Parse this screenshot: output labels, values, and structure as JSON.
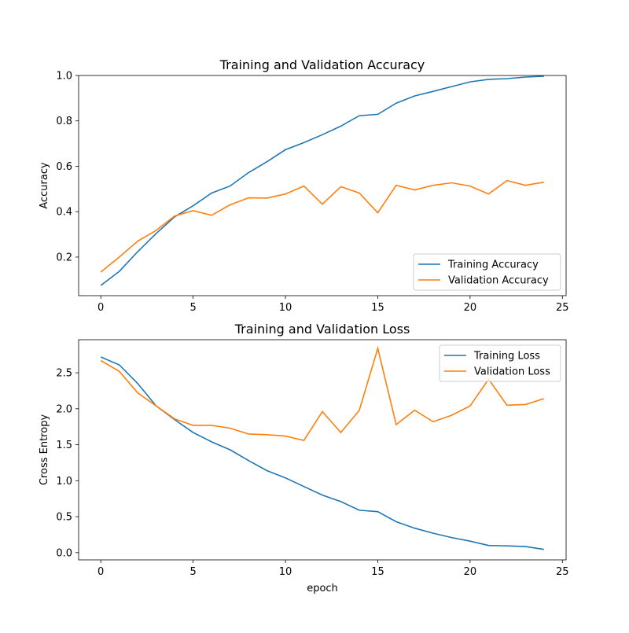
{
  "chart_data": [
    {
      "type": "line",
      "title": "Training and Validation Accuracy",
      "xlabel": "",
      "ylabel": "Accuracy",
      "xlim": [
        -1.2,
        25.2
      ],
      "ylim": [
        0.03,
        1.0
      ],
      "xticks": [
        0,
        5,
        10,
        15,
        20,
        25
      ],
      "yticks": [
        0.2,
        0.4,
        0.6,
        0.8,
        1.0
      ],
      "ytick_labels": [
        "0.2",
        "0.4",
        "0.6",
        "0.8",
        "1.0"
      ],
      "grid": false,
      "legend": "lower-right",
      "x": [
        0,
        1,
        2,
        3,
        4,
        5,
        6,
        7,
        8,
        9,
        10,
        11,
        12,
        13,
        14,
        15,
        16,
        17,
        18,
        19,
        20,
        21,
        22,
        23,
        24
      ],
      "series": [
        {
          "name": "Training Accuracy",
          "color": "#1f77b4",
          "values": [
            0.075,
            0.137,
            0.224,
            0.304,
            0.377,
            0.426,
            0.482,
            0.513,
            0.572,
            0.62,
            0.673,
            0.704,
            0.739,
            0.777,
            0.823,
            0.829,
            0.878,
            0.91,
            0.93,
            0.951,
            0.972,
            0.983,
            0.986,
            0.993,
            0.997
          ]
        },
        {
          "name": "Validation Accuracy",
          "color": "#ff7f0e",
          "values": [
            0.134,
            0.2,
            0.27,
            0.318,
            0.381,
            0.405,
            0.384,
            0.43,
            0.461,
            0.46,
            0.478,
            0.513,
            0.433,
            0.51,
            0.482,
            0.395,
            0.516,
            0.496,
            0.516,
            0.527,
            0.513,
            0.478,
            0.537,
            0.516,
            0.53
          ]
        }
      ]
    },
    {
      "type": "line",
      "title": "Training and Validation Loss",
      "xlabel": "epoch",
      "ylabel": "Cross Entropy",
      "xlim": [
        -1.2,
        25.2
      ],
      "ylim": [
        -0.1,
        2.96
      ],
      "xticks": [
        0,
        5,
        10,
        15,
        20,
        25
      ],
      "yticks": [
        0.0,
        0.5,
        1.0,
        1.5,
        2.0,
        2.5
      ],
      "ytick_labels": [
        "0.0",
        "0.5",
        "1.0",
        "1.5",
        "2.0",
        "2.5"
      ],
      "grid": false,
      "legend": "upper-right",
      "x": [
        0,
        1,
        2,
        3,
        4,
        5,
        6,
        7,
        8,
        9,
        10,
        11,
        12,
        13,
        14,
        15,
        16,
        17,
        18,
        19,
        20,
        21,
        22,
        23,
        24
      ],
      "series": [
        {
          "name": "Training Loss",
          "color": "#1f77b4",
          "values": [
            2.72,
            2.61,
            2.35,
            2.04,
            1.85,
            1.67,
            1.54,
            1.43,
            1.28,
            1.14,
            1.04,
            0.92,
            0.8,
            0.71,
            0.59,
            0.57,
            0.43,
            0.34,
            0.27,
            0.21,
            0.16,
            0.1,
            0.095,
            0.085,
            0.045
          ]
        },
        {
          "name": "Validation Loss",
          "color": "#ff7f0e",
          "values": [
            2.67,
            2.52,
            2.22,
            2.04,
            1.86,
            1.77,
            1.77,
            1.73,
            1.65,
            1.64,
            1.62,
            1.56,
            1.96,
            1.67,
            1.98,
            2.84,
            1.78,
            1.98,
            1.82,
            1.91,
            2.04,
            2.41,
            2.05,
            2.06,
            2.14
          ]
        }
      ]
    }
  ]
}
